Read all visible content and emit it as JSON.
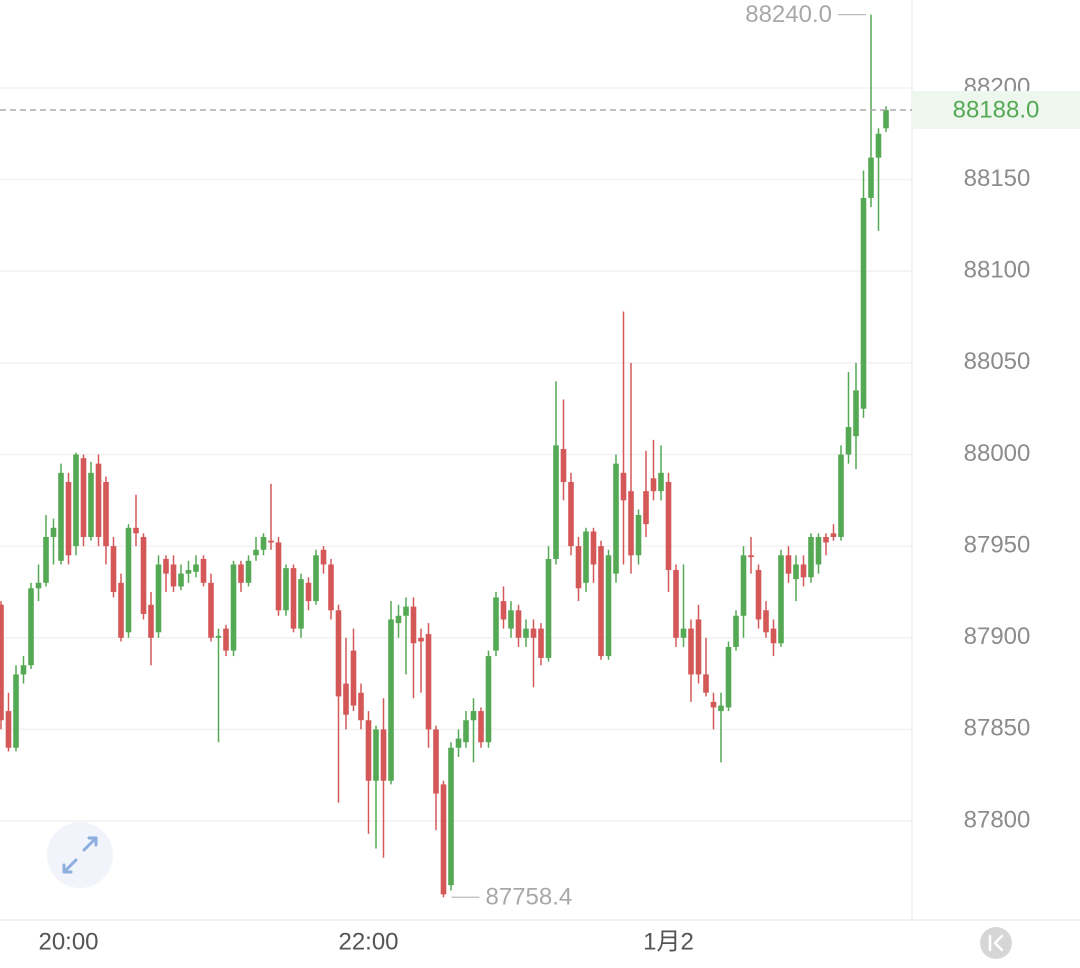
{
  "chart_data": {
    "type": "candlestick",
    "categories": [
      null,
      null,
      null,
      null,
      null,
      null,
      null,
      null,
      null,
      "20:00",
      null,
      null,
      null,
      null,
      null,
      null,
      null,
      null,
      null,
      null,
      null,
      null,
      null,
      null,
      null,
      null,
      null,
      null,
      null,
      null,
      null,
      null,
      null,
      null,
      null,
      null,
      null,
      null,
      null,
      null,
      null,
      null,
      null,
      null,
      null,
      null,
      null,
      null,
      null,
      "22:00",
      null,
      null,
      null,
      null,
      null,
      null,
      null,
      null,
      null,
      null,
      null,
      null,
      null,
      null,
      null,
      null,
      null,
      null,
      null,
      null,
      null,
      null,
      null,
      null,
      null,
      null,
      null,
      null,
      null,
      null,
      null,
      null,
      null,
      null,
      null,
      null,
      null,
      null,
      null,
      "1月2",
      null,
      null,
      null,
      null,
      null,
      null,
      null,
      null,
      null,
      null,
      null,
      null,
      null,
      null,
      null,
      null,
      null,
      null,
      null,
      null,
      null,
      null,
      null,
      null,
      null,
      null,
      null,
      null,
      null
    ],
    "open": [
      87918,
      87860,
      87840,
      87880,
      87885,
      87927,
      87930,
      87955,
      87942,
      87985,
      87950,
      87998,
      87955,
      87995,
      87985,
      87950,
      87930,
      87903,
      87960,
      87955,
      87918,
      87903,
      87943,
      87940,
      87928,
      87935,
      87936,
      87943,
      87930,
      87900,
      87905,
      87893,
      87940,
      87930,
      87945,
      87948,
      87953,
      87952,
      87915,
      87938,
      87905,
      87930,
      87920,
      87948,
      87940,
      87915,
      87875,
      87893,
      87870,
      87855,
      87822,
      87850,
      87822,
      87908,
      87912,
      87917,
      87900,
      87902,
      87850,
      87820,
      87765,
      87840,
      87843,
      87855,
      87860,
      87843,
      87893,
      87920,
      87905,
      87915,
      87900,
      87905,
      87905,
      87889,
      87943,
      88003,
      87985,
      87950,
      87930,
      87958,
      87950,
      87890,
      87935,
      87990,
      87980,
      87945,
      87980,
      87987,
      87980,
      87985,
      87937,
      87900,
      87905,
      87910,
      87880,
      87865,
      87860,
      87862,
      87895,
      87912,
      87945,
      87937,
      87915,
      87905,
      87897,
      87945,
      87932,
      87940,
      87933,
      87940,
      87955,
      87957,
      87955,
      88000,
      88010,
      88025,
      88140,
      88162,
      88178
    ],
    "high": [
      87920,
      87870,
      87885,
      87890,
      87930,
      87940,
      87967,
      87965,
      87995,
      87990,
      88001,
      88000,
      87996,
      88000,
      87988,
      87955,
      87935,
      87962,
      87978,
      87957,
      87925,
      87945,
      87945,
      87945,
      87940,
      87942,
      87945,
      87945,
      87935,
      87905,
      87907,
      87942,
      87942,
      87945,
      87955,
      87957,
      87984,
      87955,
      87940,
      87940,
      87935,
      87933,
      87948,
      87950,
      87943,
      87918,
      87900,
      87905,
      87875,
      87860,
      87852,
      87867,
      87920,
      87918,
      87922,
      87922,
      87905,
      87908,
      87852,
      87822,
      87843,
      87850,
      87860,
      87867,
      87862,
      87893,
      87925,
      87928,
      87920,
      87918,
      87910,
      87910,
      87908,
      87950,
      88040,
      88030,
      87990,
      87955,
      87960,
      87960,
      87953,
      87948,
      88000,
      88078,
      88050,
      87970,
      88002,
      88008,
      88005,
      87990,
      87940,
      87940,
      87910,
      87918,
      87900,
      87870,
      87870,
      87898,
      87915,
      87950,
      87955,
      87940,
      87920,
      87910,
      87948,
      87950,
      87945,
      87945,
      87957,
      87957,
      87957,
      87962,
      88005,
      88045,
      88050,
      88155,
      88240,
      88178,
      88190
    ],
    "low": [
      87850,
      87838,
      87838,
      87875,
      87883,
      87920,
      87928,
      87940,
      87940,
      87940,
      87945,
      87950,
      87953,
      87950,
      87940,
      87922,
      87898,
      87900,
      87950,
      87910,
      87885,
      87900,
      87925,
      87925,
      87926,
      87930,
      87933,
      87928,
      87898,
      87843,
      87890,
      87890,
      87925,
      87928,
      87942,
      87945,
      87948,
      87912,
      87912,
      87903,
      87900,
      87915,
      87918,
      87935,
      87910,
      87810,
      87850,
      87860,
      87850,
      87793,
      87785,
      87780,
      87820,
      87900,
      87880,
      87867,
      87870,
      87840,
      87795,
      87758.4,
      87762,
      87835,
      87840,
      87832,
      87840,
      87840,
      87890,
      87905,
      87900,
      87895,
      87895,
      87873,
      87885,
      87887,
      87940,
      87975,
      87945,
      87920,
      87925,
      87930,
      87888,
      87888,
      87930,
      87940,
      87935,
      87940,
      87955,
      87975,
      87975,
      87925,
      87895,
      87895,
      87865,
      87875,
      87868,
      87850,
      87832,
      87860,
      87893,
      87900,
      87935,
      87905,
      87900,
      87890,
      87895,
      87930,
      87920,
      87928,
      87930,
      87935,
      87945,
      87953,
      87953,
      87995,
      87992,
      88020,
      88135,
      88122,
      88176
    ],
    "close": [
      87855,
      87840,
      87880,
      87885,
      87927,
      87930,
      87955,
      87960,
      87990,
      87945,
      88000,
      87955,
      87990,
      87955,
      87950,
      87925,
      87900,
      87960,
      87957,
      87913,
      87900,
      87940,
      87935,
      87928,
      87935,
      87937,
      87940,
      87930,
      87900,
      87901,
      87893,
      87940,
      87930,
      87942,
      87948,
      87955,
      87952,
      87915,
      87938,
      87905,
      87932,
      87920,
      87945,
      87940,
      87915,
      87868,
      87858,
      87863,
      87855,
      87822,
      87850,
      87822,
      87910,
      87912,
      87917,
      87897,
      87898,
      87850,
      87815,
      87760,
      87840,
      87845,
      87855,
      87860,
      87843,
      87890,
      87922,
      87910,
      87915,
      87900,
      87905,
      87900,
      87889,
      87943,
      88005,
      87985,
      87950,
      87927,
      87958,
      87940,
      87890,
      87945,
      87995,
      87975,
      87945,
      87967,
      87962,
      87980,
      87990,
      87937,
      87900,
      87905,
      87880,
      87880,
      87870,
      87862,
      87863,
      87895,
      87912,
      87945,
      87944,
      87910,
      87903,
      87897,
      87945,
      87935,
      87940,
      87933,
      87955,
      87955,
      87952,
      87955,
      88000,
      88015,
      88035,
      88140,
      88162,
      88175,
      88188
    ],
    "up_color": "#55a955",
    "down_color": "#d45858",
    "ylim": [
      87746,
      88248
    ],
    "yticks": [
      87800,
      87850,
      87900,
      87950,
      88000,
      88050,
      88100,
      88150,
      88200
    ],
    "grid": true,
    "last_price": {
      "value": 88188,
      "label": "88188.0"
    },
    "max_marker": {
      "value": 88240,
      "label": "88240.0"
    },
    "min_marker": {
      "value": 87758.4,
      "label": "87758.4"
    }
  }
}
